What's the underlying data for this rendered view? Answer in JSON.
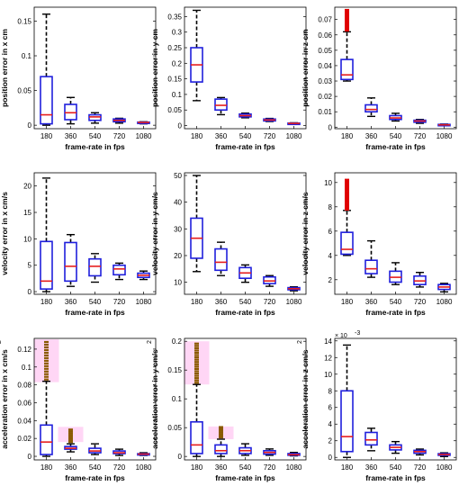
{
  "colors": {
    "box": "#1f1fdc",
    "median": "#e61e1e",
    "whisker": "#000000",
    "outlier": "#e00000",
    "outlier_dark": "#8a5a00",
    "highlight": "#ffd6f5"
  },
  "chart_data": [
    {
      "type": "box",
      "id": "pos-x",
      "xlabel": "frame-rate in fps",
      "ylabel": "position error in x cm",
      "categories": [
        "180",
        "360",
        "540",
        "720",
        "1080"
      ],
      "ylim": [
        -0.005,
        0.17
      ],
      "yticks": [
        0,
        0.05,
        0.1,
        0.15
      ],
      "ytick_labels": [
        "0",
        "0.05",
        "0.1",
        "0.15"
      ],
      "boxes": [
        {
          "q1": 0.002,
          "median": 0.015,
          "q3": 0.07,
          "lo": 0,
          "hi": 0.16
        },
        {
          "q1": 0.008,
          "median": 0.018,
          "q3": 0.03,
          "lo": 0.002,
          "hi": 0.04
        },
        {
          "q1": 0.007,
          "median": 0.012,
          "q3": 0.015,
          "lo": 0.003,
          "hi": 0.018
        },
        {
          "q1": 0.005,
          "median": 0.007,
          "q3": 0.009,
          "lo": 0.003,
          "hi": 0.01
        },
        {
          "q1": 0.003,
          "median": 0.004,
          "q3": 0.0045,
          "lo": 0.002,
          "hi": 0.005
        }
      ]
    },
    {
      "type": "box",
      "id": "pos-y",
      "xlabel": "frame-rate in fps",
      "ylabel": "position error in y cm",
      "categories": [
        "180",
        "360",
        "540",
        "720",
        "1080"
      ],
      "ylim": [
        -0.01,
        0.38
      ],
      "yticks": [
        0,
        0.05,
        0.1,
        0.15,
        0.2,
        0.25,
        0.3,
        0.35
      ],
      "ytick_labels": [
        "0",
        "0.05",
        "0.1",
        "0.15",
        "0.2",
        "0.25",
        "0.3",
        "0.35"
      ],
      "boxes": [
        {
          "q1": 0.14,
          "median": 0.195,
          "q3": 0.25,
          "lo": 0.08,
          "hi": 0.37
        },
        {
          "q1": 0.05,
          "median": 0.065,
          "q3": 0.085,
          "lo": 0.035,
          "hi": 0.09
        },
        {
          "q1": 0.028,
          "median": 0.032,
          "q3": 0.037,
          "lo": 0.025,
          "hi": 0.04
        },
        {
          "q1": 0.015,
          "median": 0.018,
          "q3": 0.021,
          "lo": 0.013,
          "hi": 0.023
        },
        {
          "q1": 0.006,
          "median": 0.007,
          "q3": 0.008,
          "lo": 0.005,
          "hi": 0.009
        }
      ]
    },
    {
      "type": "box",
      "id": "pos-z",
      "xlabel": "frame-rate in fps",
      "ylabel": "position error in z cm",
      "categories": [
        "180",
        "360",
        "540",
        "720",
        "1080"
      ],
      "ylim": [
        -0.001,
        0.078
      ],
      "yticks": [
        0,
        0.01,
        0.02,
        0.03,
        0.04,
        0.05,
        0.06,
        0.07
      ],
      "ytick_labels": [
        "0",
        "0.01",
        "0.02",
        "0.03",
        "0.04",
        "0.05",
        "0.06",
        "0.07"
      ],
      "boxes": [
        {
          "q1": 0.031,
          "median": 0.034,
          "q3": 0.044,
          "lo": 0.03,
          "hi": 0.062,
          "outliers": [
            0.063,
            0.064,
            0.065,
            0.066,
            0.067,
            0.068,
            0.069,
            0.07,
            0.071,
            0.072,
            0.073,
            0.074,
            0.075,
            0.076
          ]
        },
        {
          "q1": 0.01,
          "median": 0.0115,
          "q3": 0.0145,
          "lo": 0.007,
          "hi": 0.019
        },
        {
          "q1": 0.005,
          "median": 0.006,
          "q3": 0.0075,
          "lo": 0.004,
          "hi": 0.009
        },
        {
          "q1": 0.0032,
          "median": 0.004,
          "q3": 0.0045,
          "lo": 0.0025,
          "hi": 0.005
        },
        {
          "q1": 0.0012,
          "median": 0.0015,
          "q3": 0.0018,
          "lo": 0.001,
          "hi": 0.002
        }
      ]
    },
    {
      "type": "box",
      "id": "vel-x",
      "xlabel": "frame-rate in fps",
      "ylabel": "velocity error in x cm/s",
      "categories": [
        "180",
        "360",
        "540",
        "720",
        "1080"
      ],
      "ylim": [
        -0.5,
        22.5
      ],
      "yticks": [
        0,
        5,
        10,
        15,
        20
      ],
      "ytick_labels": [
        "0",
        "5",
        "10",
        "15",
        "20"
      ],
      "boxes": [
        {
          "q1": 0.5,
          "median": 2,
          "q3": 9.5,
          "lo": 0,
          "hi": 21.5
        },
        {
          "q1": 2,
          "median": 4.8,
          "q3": 9.3,
          "lo": 1,
          "hi": 10.8
        },
        {
          "q1": 3,
          "median": 4.8,
          "q3": 6.2,
          "lo": 1.8,
          "hi": 7.2
        },
        {
          "q1": 3.2,
          "median": 4.3,
          "q3": 5,
          "lo": 2.3,
          "hi": 5.4
        },
        {
          "q1": 2.7,
          "median": 3.1,
          "q3": 3.5,
          "lo": 2.3,
          "hi": 3.9
        }
      ]
    },
    {
      "type": "box",
      "id": "vel-y",
      "xlabel": "frame-rate in fps",
      "ylabel": "velocity error in y cm/s",
      "categories": [
        "180",
        "360",
        "540",
        "720",
        "1080"
      ],
      "ylim": [
        5.5,
        51
      ],
      "yticks": [
        10,
        20,
        30,
        40,
        50
      ],
      "ytick_labels": [
        "10",
        "20",
        "30",
        "40",
        "50"
      ],
      "boxes": [
        {
          "q1": 19,
          "median": 26.5,
          "q3": 34,
          "lo": 14,
          "hi": 50
        },
        {
          "q1": 14.5,
          "median": 17.5,
          "q3": 22.5,
          "lo": 12.5,
          "hi": 25
        },
        {
          "q1": 11.5,
          "median": 13.5,
          "q3": 15.5,
          "lo": 10,
          "hi": 16.5
        },
        {
          "q1": 9.5,
          "median": 10.5,
          "q3": 12,
          "lo": 8.5,
          "hi": 12.5
        },
        {
          "q1": 7.2,
          "median": 7.6,
          "q3": 8,
          "lo": 6.8,
          "hi": 8.3
        }
      ]
    },
    {
      "type": "box",
      "id": "vel-z",
      "xlabel": "frame-rate in fps",
      "ylabel": "velocity error in z cm/s",
      "categories": [
        "180",
        "360",
        "540",
        "720",
        "1080"
      ],
      "ylim": [
        0.8,
        10.8
      ],
      "yticks": [
        2,
        4,
        6,
        8,
        10
      ],
      "ytick_labels": [
        "2",
        "4",
        "6",
        "8",
        "10"
      ],
      "boxes": [
        {
          "q1": 4.1,
          "median": 4.5,
          "q3": 5.9,
          "lo": 4,
          "hi": 7.7,
          "outliers": [
            7.8,
            8,
            8.2,
            8.4,
            8.6,
            8.8,
            9,
            9.2,
            9.4,
            9.6,
            9.8,
            10,
            10.2
          ]
        },
        {
          "q1": 2.5,
          "median": 2.9,
          "q3": 3.6,
          "lo": 2.2,
          "hi": 5.2
        },
        {
          "q1": 1.8,
          "median": 2.2,
          "q3": 2.7,
          "lo": 1.6,
          "hi": 3.4
        },
        {
          "q1": 1.6,
          "median": 1.9,
          "q3": 2.3,
          "lo": 1.4,
          "hi": 2.6
        },
        {
          "q1": 1.2,
          "median": 1.4,
          "q3": 1.6,
          "lo": 1,
          "hi": 1.7
        }
      ]
    },
    {
      "type": "box",
      "id": "acc-x",
      "xlabel": "frame-rate in fps",
      "ylabel": "acceleration error in x cm/s",
      "ylabel_sup": "2",
      "categories": [
        "180",
        "360",
        "540",
        "720",
        "1080"
      ],
      "ylim": [
        -0.004,
        0.132
      ],
      "yticks": [
        0,
        0.02,
        0.04,
        0.06,
        0.08,
        0.1,
        0.12
      ],
      "ytick_labels": [
        "0",
        "0.02",
        "0.04",
        "0.06",
        "0.08",
        "0.1",
        "0.12"
      ],
      "highlights": [
        {
          "cat": 0,
          "y0": 0.083,
          "y1": 0.131
        },
        {
          "cat": 1,
          "y0": 0.016,
          "y1": 0.033
        }
      ],
      "boxes": [
        {
          "q1": 0.002,
          "median": 0.016,
          "q3": 0.035,
          "lo": 0,
          "hi": 0.084,
          "outliers": [
            0.086,
            0.089,
            0.092,
            0.095,
            0.098,
            0.101,
            0.104,
            0.107,
            0.11,
            0.113,
            0.116,
            0.119,
            0.122,
            0.125,
            0.128
          ]
        },
        {
          "q1": 0.008,
          "median": 0.009,
          "q3": 0.011,
          "lo": 0.005,
          "hi": 0.014,
          "outliers": [
            0.016,
            0.018,
            0.02,
            0.022,
            0.024,
            0.026,
            0.028,
            0.03
          ]
        },
        {
          "q1": 0.004,
          "median": 0.006,
          "q3": 0.009,
          "lo": 0.002,
          "hi": 0.014
        },
        {
          "q1": 0.003,
          "median": 0.004,
          "q3": 0.006,
          "lo": 0.001,
          "hi": 0.008
        },
        {
          "q1": 0.002,
          "median": 0.0025,
          "q3": 0.003,
          "lo": 0.001,
          "hi": 0.004
        }
      ]
    },
    {
      "type": "box",
      "id": "acc-y",
      "xlabel": "frame-rate in fps",
      "ylabel": "acceleration error in y cm/s",
      "ylabel_sup": "2",
      "categories": [
        "180",
        "360",
        "540",
        "720",
        "1080"
      ],
      "ylim": [
        -0.006,
        0.205
      ],
      "yticks": [
        0,
        0.05,
        0.1,
        0.15,
        0.2
      ],
      "ytick_labels": [
        "0",
        "0.05",
        "0.1",
        "0.15",
        "0.2"
      ],
      "highlights": [
        {
          "cat": 0,
          "y0": 0.125,
          "y1": 0.2
        },
        {
          "cat": 1,
          "y0": 0.03,
          "y1": 0.052
        }
      ],
      "boxes": [
        {
          "q1": 0.005,
          "median": 0.02,
          "q3": 0.06,
          "lo": 0,
          "hi": 0.125,
          "outliers": [
            0.128,
            0.132,
            0.136,
            0.14,
            0.144,
            0.148,
            0.152,
            0.156,
            0.16,
            0.164,
            0.168,
            0.172,
            0.176,
            0.18,
            0.184,
            0.188,
            0.192,
            0.196
          ]
        },
        {
          "q1": 0.005,
          "median": 0.01,
          "q3": 0.02,
          "lo": 0,
          "hi": 0.03,
          "outliers": [
            0.033,
            0.036,
            0.039,
            0.042,
            0.045,
            0.048,
            0.051
          ]
        },
        {
          "q1": 0.005,
          "median": 0.01,
          "q3": 0.015,
          "lo": 0.002,
          "hi": 0.022
        },
        {
          "q1": 0.004,
          "median": 0.007,
          "q3": 0.01,
          "lo": 0.002,
          "hi": 0.013
        },
        {
          "q1": 0.002,
          "median": 0.003,
          "q3": 0.005,
          "lo": 0.001,
          "hi": 0.007
        }
      ]
    },
    {
      "type": "box",
      "id": "acc-z",
      "xlabel": "frame-rate in fps",
      "ylabel": "acceleration error in z cm/s",
      "ylabel_sup": "2",
      "y_exponent": "× 10",
      "y_exponent_power": "-3",
      "categories": [
        "180",
        "360",
        "540",
        "720",
        "1080"
      ],
      "ylim": [
        -0.3,
        14.3
      ],
      "yticks": [
        0,
        2,
        4,
        6,
        8,
        10,
        12,
        14
      ],
      "ytick_labels": [
        "0",
        "2",
        "4",
        "6",
        "8",
        "10",
        "12",
        "14"
      ],
      "boxes": [
        {
          "q1": 0.7,
          "median": 2.5,
          "q3": 8,
          "lo": 0,
          "hi": 13.5
        },
        {
          "q1": 1.5,
          "median": 2.1,
          "q3": 3,
          "lo": 0.8,
          "hi": 3.5
        },
        {
          "q1": 0.9,
          "median": 1.2,
          "q3": 1.5,
          "lo": 0.5,
          "hi": 1.9
        },
        {
          "q1": 0.5,
          "median": 0.7,
          "q3": 0.85,
          "lo": 0.3,
          "hi": 1
        },
        {
          "q1": 0.25,
          "median": 0.35,
          "q3": 0.45,
          "lo": 0.1,
          "hi": 0.55
        }
      ]
    }
  ]
}
